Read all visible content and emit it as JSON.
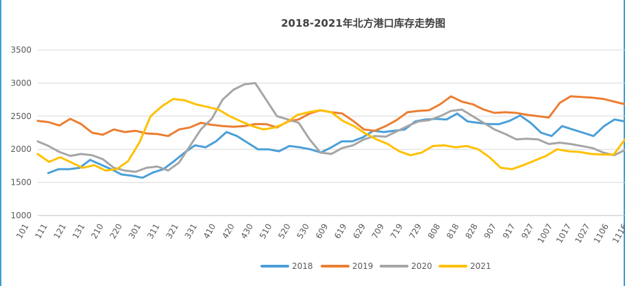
{
  "chart_data": {
    "type": "line",
    "title": "2018-2021年北方港口库存走势图",
    "xlabel": "",
    "ylabel": "",
    "ylim": [
      1000,
      3500
    ],
    "yticks": [
      1000,
      1500,
      2000,
      2500,
      3000,
      3500
    ],
    "grid": true,
    "legend_position": "bottom",
    "x_tick_labels": [
      "101",
      "111",
      "121",
      "131",
      "210",
      "220",
      "301",
      "311",
      "321",
      "331",
      "410",
      "420",
      "430",
      "510",
      "520",
      "530",
      "609",
      "619",
      "629",
      "709",
      "719",
      "729",
      "808",
      "818",
      "828",
      "907",
      "917",
      "927",
      "1007",
      "1017",
      "1027",
      "1106",
      "1116"
    ],
    "series": [
      {
        "name": "2018",
        "color": "#4a9fd8",
        "values": [
          null,
          1640,
          1700,
          1700,
          1720,
          1840,
          1770,
          1700,
          1620,
          1600,
          1570,
          1650,
          1700,
          1820,
          1950,
          2060,
          2030,
          2120,
          2260,
          2200,
          2100,
          2000,
          2000,
          1970,
          2050,
          2030,
          2000,
          1950,
          2030,
          2120,
          2120,
          2180,
          2280,
          2260,
          2280,
          2300,
          2420,
          2450,
          2460,
          2450,
          2540,
          2420,
          2400,
          2380,
          2380,
          2430,
          2510,
          2400,
          2250,
          2200,
          2350,
          2300,
          2250,
          2200,
          2350,
          2450,
          2420
        ]
      },
      {
        "name": "2019",
        "color": "#ec7d31",
        "values": [
          2430,
          2410,
          2360,
          2460,
          2380,
          2250,
          2220,
          2300,
          2260,
          2280,
          2240,
          2230,
          2200,
          2300,
          2330,
          2400,
          2370,
          2350,
          2340,
          2350,
          2380,
          2380,
          2330,
          2420,
          2450,
          2540,
          2590,
          2560,
          2540,
          2430,
          2300,
          2280,
          2350,
          2440,
          2560,
          2580,
          2590,
          2680,
          2800,
          2720,
          2680,
          2600,
          2550,
          2560,
          2550,
          2520,
          2500,
          2480,
          2700,
          2800,
          2790,
          2780,
          2760,
          2720,
          2680
        ]
      },
      {
        "name": "2020",
        "color": "#a5a5a5",
        "values": [
          2120,
          2050,
          1960,
          1900,
          1930,
          1910,
          1850,
          1720,
          1680,
          1660,
          1720,
          1740,
          1680,
          1800,
          2050,
          2300,
          2460,
          2750,
          2900,
          2980,
          3000,
          2750,
          2500,
          2450,
          2400,
          2150,
          1950,
          1930,
          2020,
          2060,
          2150,
          2200,
          2190,
          2270,
          2350,
          2420,
          2440,
          2500,
          2580,
          2600,
          2500,
          2400,
          2300,
          2230,
          2150,
          2160,
          2150,
          2080,
          2100,
          2080,
          2050,
          2020,
          1950,
          1910,
          1990
        ]
      },
      {
        "name": "2021",
        "color": "#ffc000",
        "values": [
          1930,
          1810,
          1880,
          1800,
          1720,
          1760,
          1680,
          1700,
          1820,
          2100,
          2500,
          2650,
          2760,
          2740,
          2680,
          2640,
          2600,
          2500,
          2420,
          2350,
          2300,
          2330,
          2400,
          2520,
          2560,
          2590,
          2560,
          2430,
          2350,
          2240,
          2150,
          2080,
          1970,
          1910,
          1950,
          2050,
          2060,
          2030,
          2050,
          2000,
          1880,
          1720,
          1700,
          1760,
          1830,
          1900,
          2000,
          1970,
          1960,
          1930,
          1920,
          1920,
          2150
        ]
      }
    ]
  }
}
